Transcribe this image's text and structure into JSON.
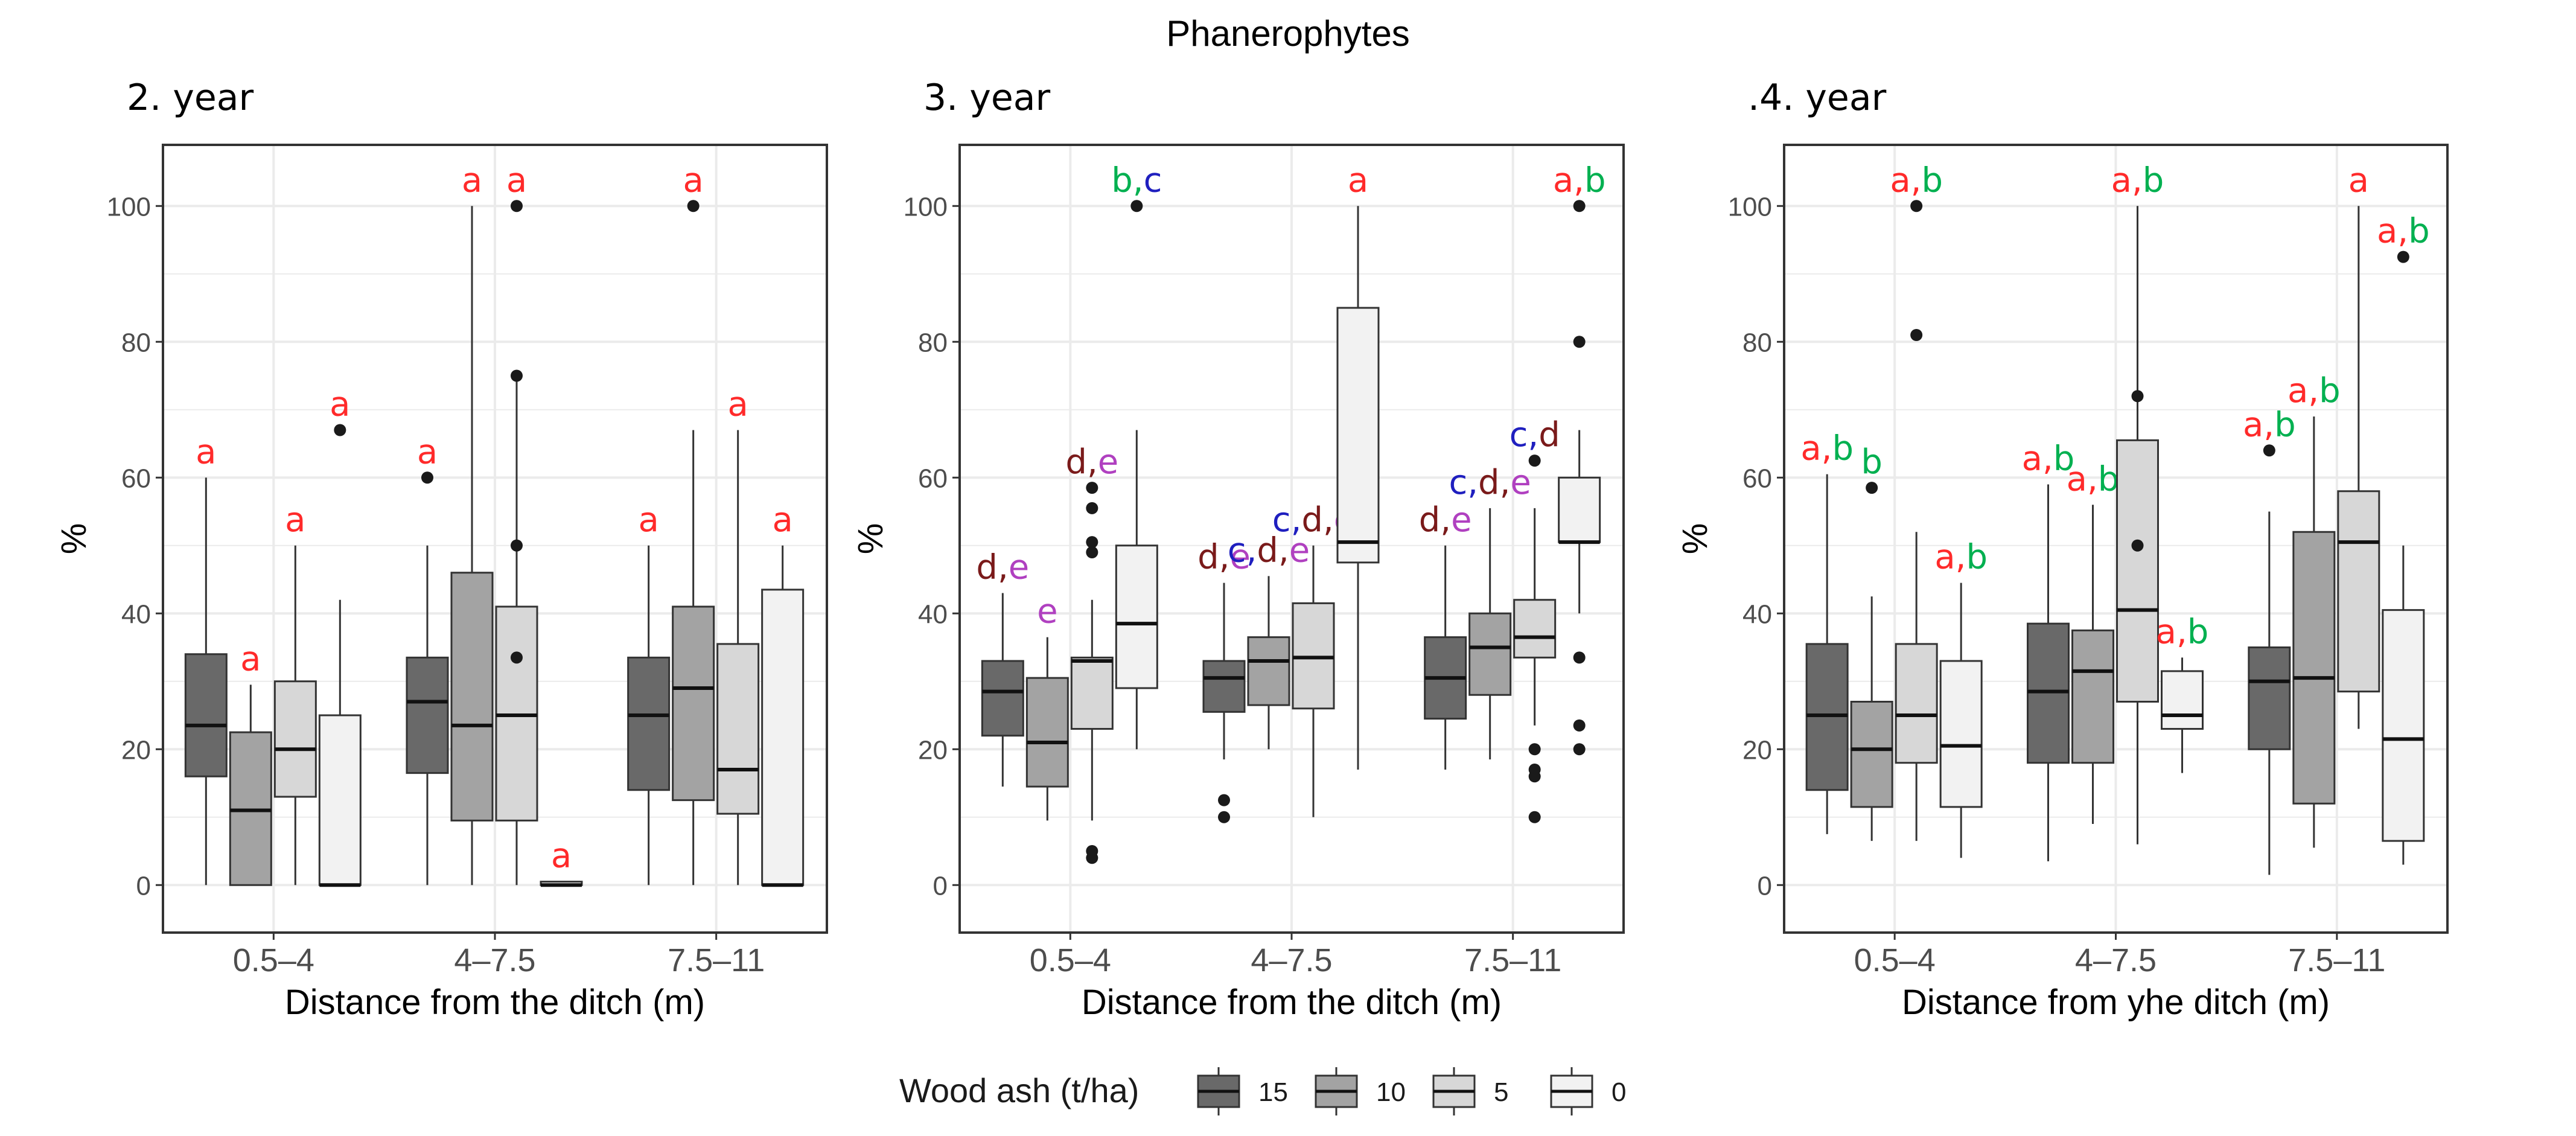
{
  "figure": {
    "title": "Phanerophytes"
  },
  "colors": {
    "fills": [
      "#696969",
      "#a3a3a3",
      "#d7d7d7",
      "#f2f2f2"
    ],
    "panel_bg": "#ffffff",
    "grid": "#ebebeb",
    "border": "#333333",
    "outlier": "#1a1a1a",
    "letters": {
      "a": "#ff2a2a",
      "b": "#00b050",
      "c": "#1f1fbf",
      "d": "#7a1a1a",
      "e": "#b040c0"
    }
  },
  "legend": {
    "title": "Wood ash (t/ha)",
    "entries": [
      "15",
      "10",
      "5",
      "0"
    ]
  },
  "chart_data": [
    {
      "type": "boxplot",
      "title": "2. year",
      "xlabel": "Distance from the ditch (m)",
      "ylabel": "%",
      "ylim": [
        -7,
        109
      ],
      "yticks": [
        0,
        20,
        40,
        60,
        80,
        100
      ],
      "categories": [
        "0.5–4",
        "4–7.5",
        "7.5–11"
      ],
      "groups": [
        "15",
        "10",
        "5",
        "0"
      ],
      "boxes": [
        [
          {
            "lw": 0,
            "q1": 16,
            "med": 23.5,
            "q3": 34,
            "uw": 60,
            "out": [],
            "sig": [
              [
                "a",
                "a"
              ]
            ]
          },
          {
            "lw": 0,
            "q1": 0,
            "med": 11,
            "q3": 22.5,
            "uw": 29.5,
            "out": [],
            "sig": [
              [
                "a",
                "a"
              ]
            ]
          },
          {
            "lw": 0,
            "q1": 13,
            "med": 20,
            "q3": 30,
            "uw": 50,
            "out": [],
            "sig": [
              [
                "a",
                "a"
              ]
            ]
          },
          {
            "lw": 0,
            "q1": 0,
            "med": 0,
            "q3": 25,
            "uw": 42,
            "out": [
              67
            ],
            "sig": [
              [
                "a",
                "a"
              ]
            ]
          }
        ],
        [
          {
            "lw": 0,
            "q1": 16.5,
            "med": 27,
            "q3": 33.5,
            "uw": 50,
            "out": [
              60
            ],
            "sig": [
              [
                "a",
                "a"
              ]
            ]
          },
          {
            "lw": 0,
            "q1": 9.5,
            "med": 23.5,
            "q3": 46,
            "uw": 100,
            "out": [],
            "sig": [
              [
                "a",
                "a"
              ]
            ]
          },
          {
            "lw": 0,
            "q1": 9.5,
            "med": 25,
            "q3": 41,
            "uw": 75,
            "out": [
              100,
              75,
              50,
              33.5
            ],
            "sig": [
              [
                "a",
                "a"
              ]
            ]
          },
          {
            "lw": 0,
            "q1": 0,
            "med": 0,
            "q3": 0.5,
            "uw": 0.5,
            "out": [],
            "sig": [
              [
                "a",
                "a"
              ]
            ]
          }
        ],
        [
          {
            "lw": 0,
            "q1": 14,
            "med": 25,
            "q3": 33.5,
            "uw": 50,
            "out": [],
            "sig": [
              [
                "a",
                "a"
              ]
            ]
          },
          {
            "lw": 0,
            "q1": 12.5,
            "med": 29,
            "q3": 41,
            "uw": 67,
            "out": [
              100
            ],
            "sig": [
              [
                "a",
                "a"
              ]
            ]
          },
          {
            "lw": 0,
            "q1": 10.5,
            "med": 17,
            "q3": 35.5,
            "uw": 67,
            "out": [],
            "sig": [
              [
                "a",
                "a"
              ]
            ]
          },
          {
            "lw": 0,
            "q1": 0,
            "med": 0,
            "q3": 43.5,
            "uw": 50,
            "out": [],
            "sig": [
              [
                "a",
                "a"
              ]
            ]
          }
        ]
      ]
    },
    {
      "type": "boxplot",
      "title": "3. year",
      "xlabel": "Distance from the ditch (m)",
      "ylabel": "%",
      "ylim": [
        -7,
        109
      ],
      "yticks": [
        0,
        20,
        40,
        60,
        80,
        100
      ],
      "categories": [
        "0.5–4",
        "4–7.5",
        "7.5–11"
      ],
      "groups": [
        "15",
        "10",
        "5",
        "0"
      ],
      "boxes": [
        [
          {
            "lw": 14.5,
            "q1": 22,
            "med": 28.5,
            "q3": 33,
            "uw": 43,
            "out": [],
            "sig": [
              [
                "d",
                "d,"
              ],
              [
                "e",
                "e"
              ]
            ]
          },
          {
            "lw": 9.5,
            "q1": 14.5,
            "med": 21,
            "q3": 30.5,
            "uw": 36.5,
            "out": [],
            "sig": [
              [
                "e",
                "e"
              ]
            ]
          },
          {
            "lw": 9.5,
            "q1": 23,
            "med": 33,
            "q3": 33.5,
            "uw": 42,
            "out": [
              58.5,
              55.5,
              50.5,
              49,
              5,
              4
            ],
            "sig": [
              [
                "d",
                "d,"
              ],
              [
                "e",
                "e"
              ]
            ]
          },
          {
            "lw": 20,
            "q1": 29,
            "med": 38.5,
            "q3": 50,
            "uw": 67,
            "out": [
              100
            ],
            "sig": [
              [
                "b",
                "b,"
              ],
              [
                "c",
                "c"
              ]
            ]
          }
        ],
        [
          {
            "lw": 18.5,
            "q1": 25.5,
            "med": 30.5,
            "q3": 33,
            "uw": 44.5,
            "out": [
              12.5,
              10
            ],
            "sig": [
              [
                "d",
                "d,"
              ],
              [
                "e",
                "e"
              ]
            ]
          },
          {
            "lw": 20,
            "q1": 26.5,
            "med": 33,
            "q3": 36.5,
            "uw": 45.5,
            "out": [],
            "sig": [
              [
                "c",
                "c,"
              ],
              [
                "d",
                "d,"
              ],
              [
                "e",
                "e"
              ]
            ]
          },
          {
            "lw": 10,
            "q1": 26,
            "med": 33.5,
            "q3": 41.5,
            "uw": 50,
            "out": [],
            "sig": [
              [
                "c",
                "c,"
              ],
              [
                "d",
                "d,"
              ],
              [
                "e",
                "e"
              ]
            ]
          },
          {
            "lw": 17,
            "q1": 47.5,
            "med": 50.5,
            "q3": 85,
            "uw": 100,
            "out": [],
            "sig": [
              [
                "a",
                "a"
              ]
            ]
          }
        ],
        [
          {
            "lw": 17,
            "q1": 24.5,
            "med": 30.5,
            "q3": 36.5,
            "uw": 50,
            "out": [],
            "sig": [
              [
                "d",
                "d,"
              ],
              [
                "e",
                "e"
              ]
            ]
          },
          {
            "lw": 18.5,
            "q1": 28,
            "med": 35,
            "q3": 40,
            "uw": 55.5,
            "out": [],
            "sig": [
              [
                "c",
                "c,"
              ],
              [
                "d",
                "d,"
              ],
              [
                "e",
                "e"
              ]
            ]
          },
          {
            "lw": 23.5,
            "q1": 33.5,
            "med": 36.5,
            "q3": 42,
            "uw": 55.5,
            "out": [
              62.5,
              20,
              17,
              16,
              10
            ],
            "sig": [
              [
                "c",
                "c,"
              ],
              [
                "d",
                "d"
              ]
            ]
          },
          {
            "lw": 40,
            "q1": 50.5,
            "med": 50.5,
            "q3": 60,
            "uw": 67,
            "out": [
              100,
              80,
              33.5,
              23.5,
              20
            ],
            "sig": [
              [
                "a",
                "a,"
              ],
              [
                "b",
                "b"
              ]
            ]
          }
        ]
      ]
    },
    {
      "type": "boxplot",
      "title": ".4. year",
      "xlabel": "Distance from yhe ditch (m)",
      "ylabel": "%",
      "ylim": [
        -7,
        109
      ],
      "yticks": [
        0,
        20,
        40,
        60,
        80,
        100
      ],
      "categories": [
        "0.5–4",
        "4–7.5",
        "7.5–11"
      ],
      "groups": [
        "15",
        "10",
        "5",
        "0"
      ],
      "boxes": [
        [
          {
            "lw": 7.5,
            "q1": 14,
            "med": 25,
            "q3": 35.5,
            "uw": 60.5,
            "out": [],
            "sig": [
              [
                "a",
                "a,"
              ],
              [
                "b",
                "b"
              ]
            ]
          },
          {
            "lw": 6.5,
            "q1": 11.5,
            "med": 20,
            "q3": 27,
            "uw": 42.5,
            "out": [
              58.5
            ],
            "sig": [
              [
                "b",
                "b"
              ]
            ]
          },
          {
            "lw": 6.5,
            "q1": 18,
            "med": 25,
            "q3": 35.5,
            "uw": 52,
            "out": [
              100,
              81
            ],
            "sig": [
              [
                "a",
                "a,"
              ],
              [
                "b",
                "b"
              ]
            ]
          },
          {
            "lw": 4,
            "q1": 11.5,
            "med": 20.5,
            "q3": 33,
            "uw": 44.5,
            "out": [],
            "sig": [
              [
                "a",
                "a,"
              ],
              [
                "b",
                "b"
              ]
            ]
          }
        ],
        [
          {
            "lw": 3.5,
            "q1": 18,
            "med": 28.5,
            "q3": 38.5,
            "uw": 59,
            "out": [],
            "sig": [
              [
                "a",
                "a,"
              ],
              [
                "b",
                "b"
              ]
            ]
          },
          {
            "lw": 9,
            "q1": 18,
            "med": 31.5,
            "q3": 37.5,
            "uw": 56,
            "out": [],
            "sig": [
              [
                "a",
                "a,"
              ],
              [
                "b",
                "b"
              ]
            ]
          },
          {
            "lw": 6,
            "q1": 27,
            "med": 40.5,
            "q3": 65.5,
            "uw": 100,
            "out": [
              72,
              50
            ],
            "sig": [
              [
                "a",
                "a,"
              ],
              [
                "b",
                "b"
              ]
            ]
          },
          {
            "lw": 16.5,
            "q1": 23,
            "med": 25,
            "q3": 31.5,
            "uw": 33.5,
            "out": [],
            "sig": [
              [
                "a",
                "a,"
              ],
              [
                "b",
                "b"
              ]
            ]
          }
        ],
        [
          {
            "lw": 1.5,
            "q1": 20,
            "med": 30,
            "q3": 35,
            "uw": 55,
            "out": [
              64
            ],
            "sig": [
              [
                "a",
                "a,"
              ],
              [
                "b",
                "b"
              ]
            ]
          },
          {
            "lw": 5.5,
            "q1": 12,
            "med": 30.5,
            "q3": 52,
            "uw": 69,
            "out": [],
            "sig": [
              [
                "a",
                "a,"
              ],
              [
                "b",
                "b"
              ]
            ]
          },
          {
            "lw": 23,
            "q1": 28.5,
            "med": 50.5,
            "q3": 58,
            "uw": 100,
            "out": [],
            "sig": [
              [
                "a",
                "a"
              ]
            ]
          },
          {
            "lw": 3,
            "q1": 6.5,
            "med": 21.5,
            "q3": 40.5,
            "uw": 50,
            "out": [
              92.5
            ],
            "sig": [
              [
                "a",
                "a,"
              ],
              [
                "b",
                "b"
              ]
            ]
          }
        ]
      ]
    }
  ]
}
